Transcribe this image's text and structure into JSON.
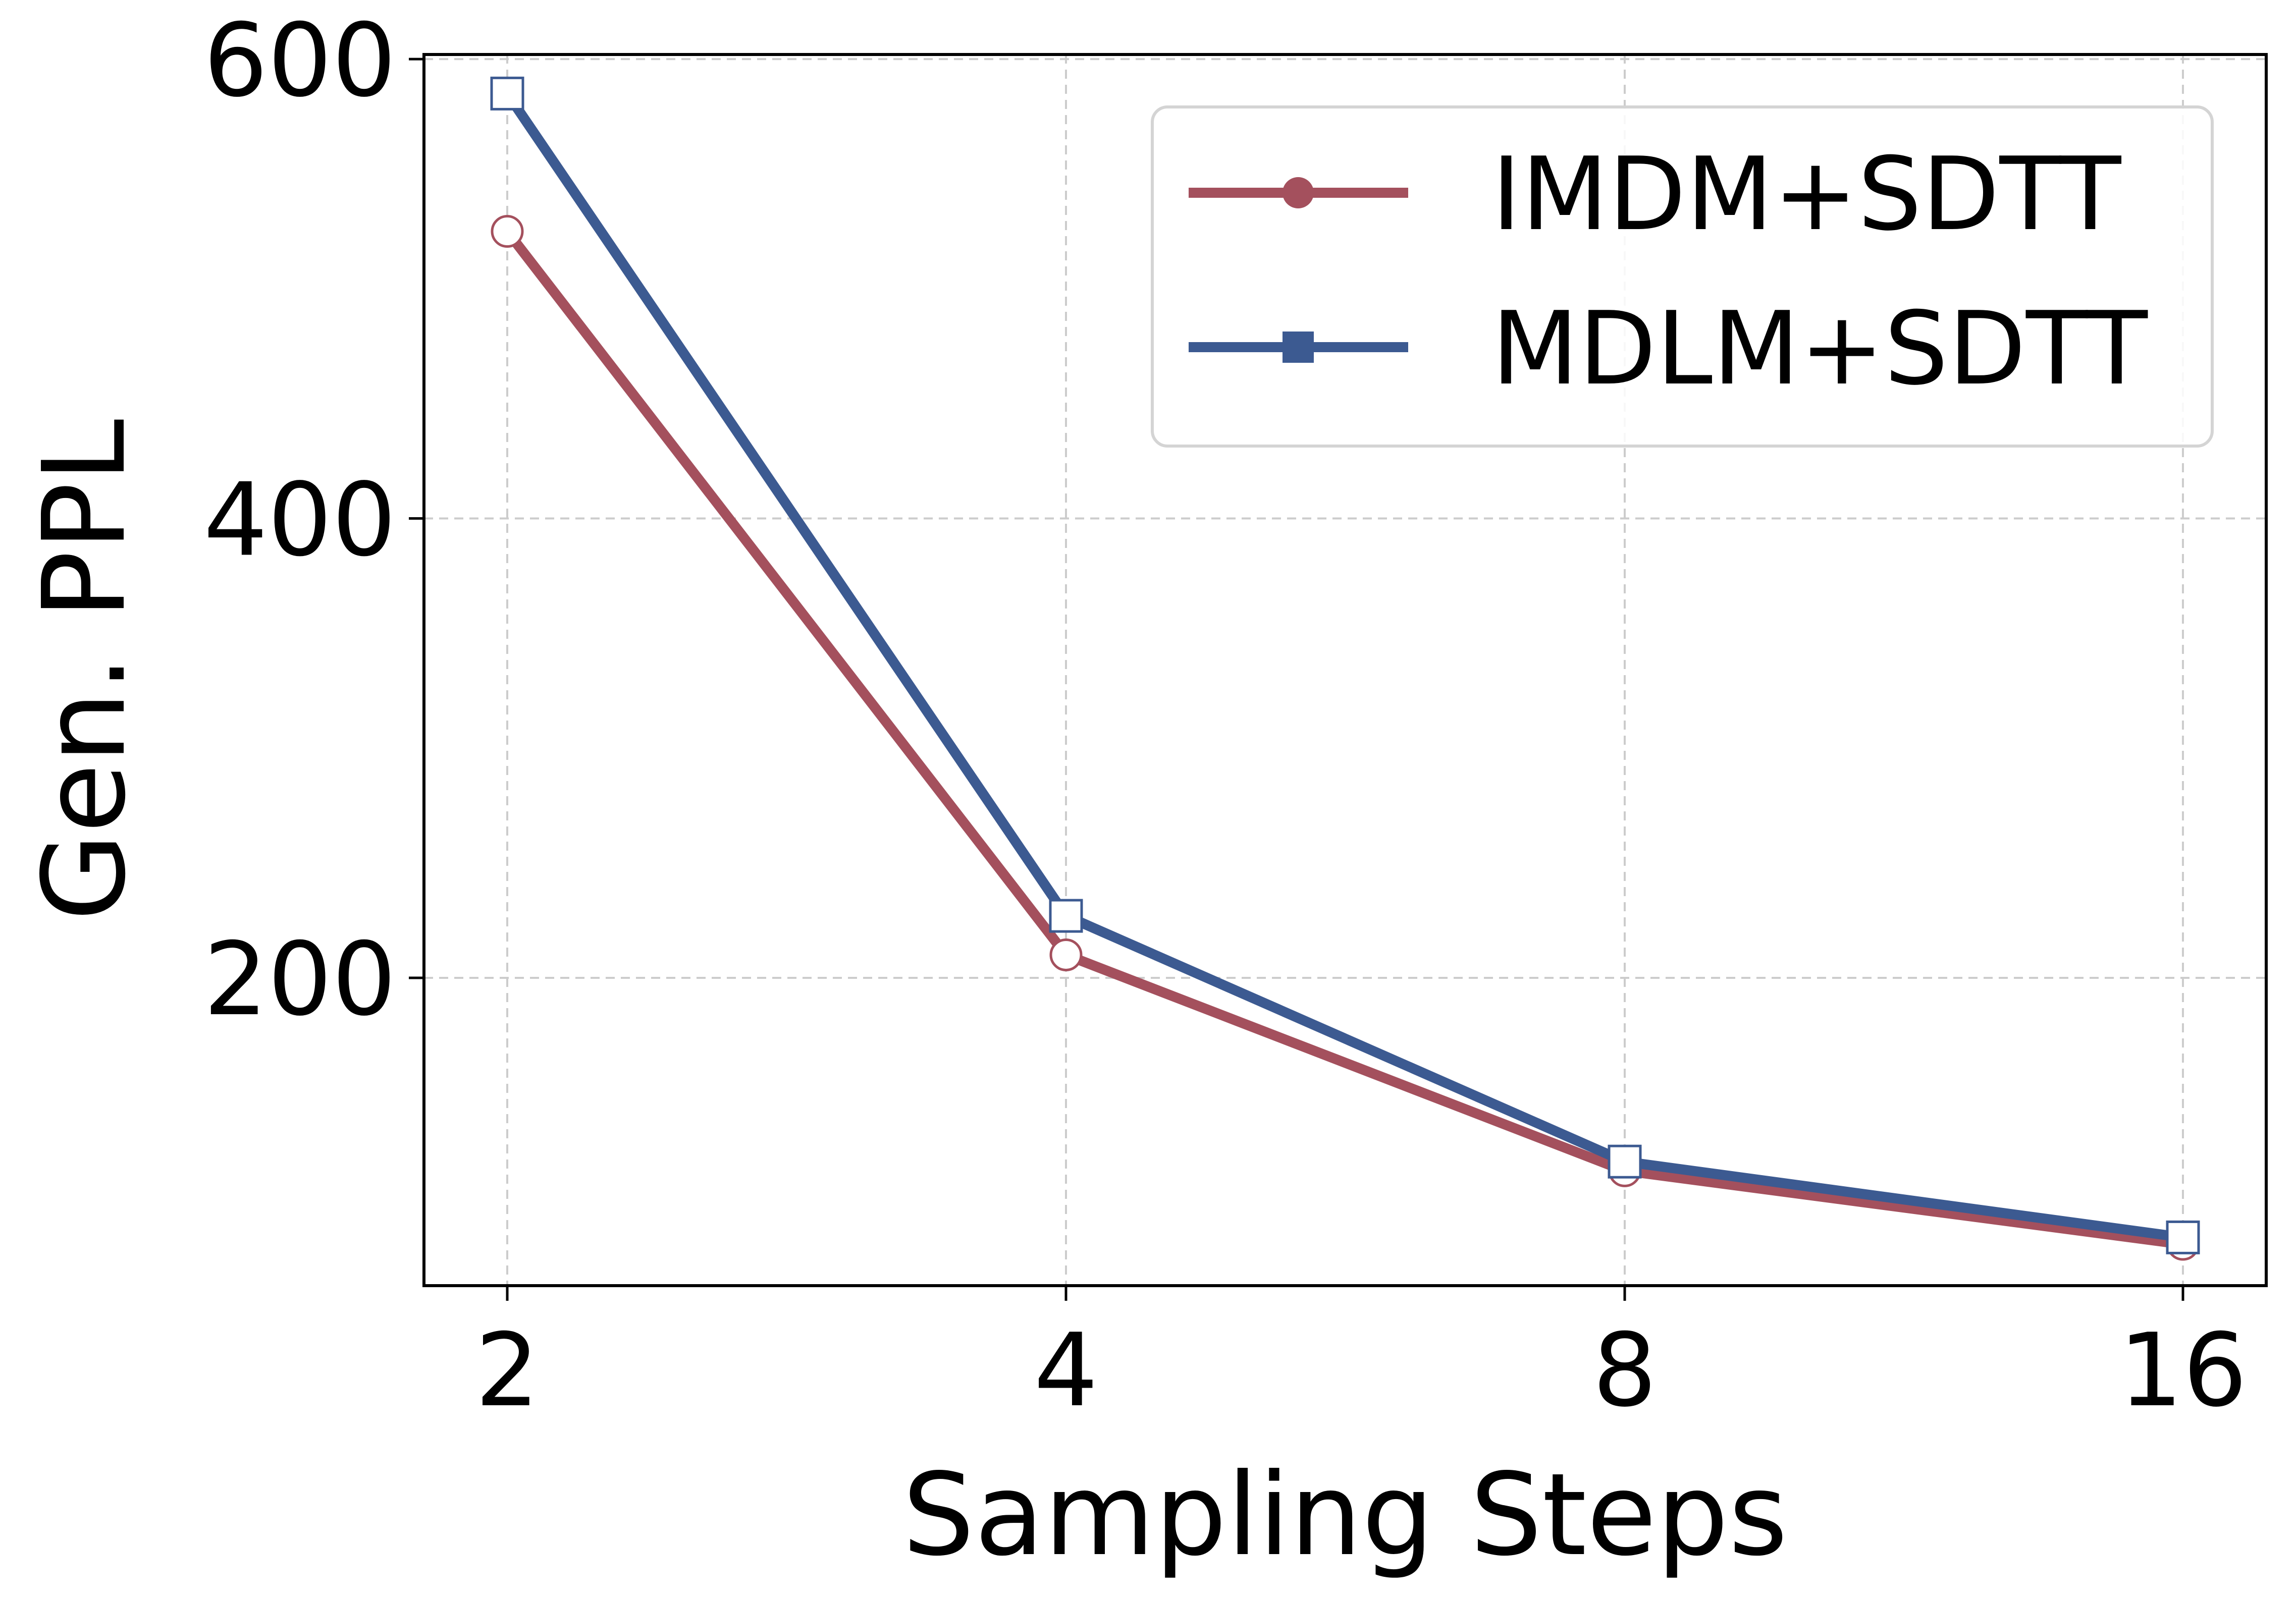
{
  "chart_data": {
    "type": "line",
    "x": [
      2,
      4,
      8,
      16
    ],
    "xticks": [
      "2",
      "4",
      "8",
      "16"
    ],
    "xscale": "log2",
    "xlabel": "Sampling Steps",
    "ylabel": "Gen. PPL",
    "ylim": [
      66,
      602
    ],
    "yticks": [
      200,
      400,
      600
    ],
    "grid": true,
    "legend_position": "top-right",
    "series": [
      {
        "name": "IMDM+SDTT",
        "values": [
          525,
          210,
          116,
          84
        ],
        "color": "#a4505d",
        "marker": "circle"
      },
      {
        "name": "MDLM+SDTT",
        "values": [
          585,
          227,
          120,
          87
        ],
        "color": "#3c5a91",
        "marker": "square"
      }
    ]
  }
}
